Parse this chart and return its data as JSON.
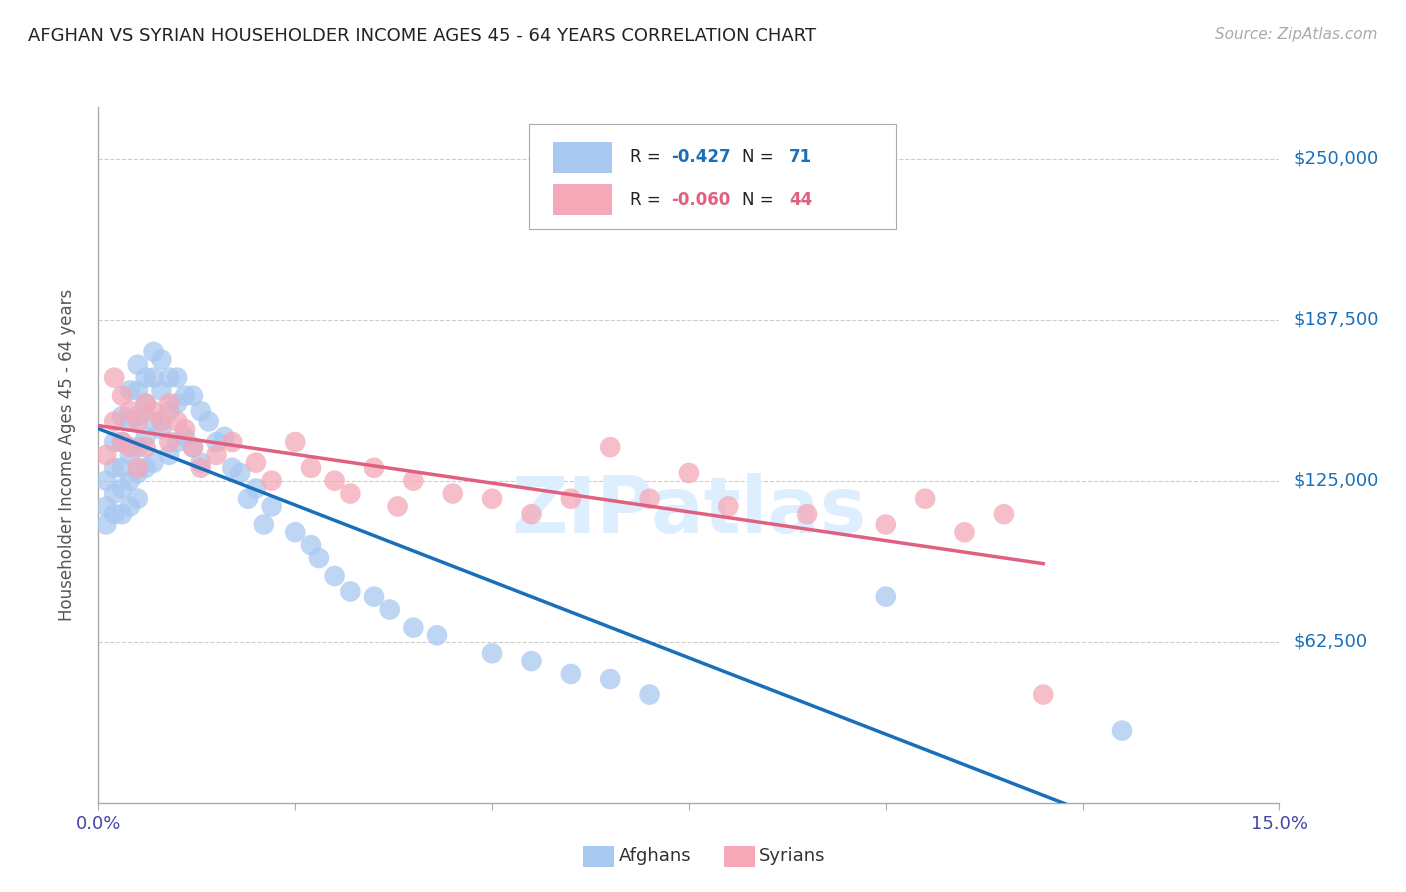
{
  "title": "AFGHAN VS SYRIAN HOUSEHOLDER INCOME AGES 45 - 64 YEARS CORRELATION CHART",
  "source": "Source: ZipAtlas.com",
  "ylabel": "Householder Income Ages 45 - 64 years",
  "ytick_labels": [
    "$62,500",
    "$125,000",
    "$187,500",
    "$250,000"
  ],
  "ytick_values": [
    62500,
    125000,
    187500,
    250000
  ],
  "ylim": [
    0,
    270000
  ],
  "xlim": [
    0.0,
    0.15
  ],
  "afghan_color": "#a8c8f0",
  "syrian_color": "#f4a8b8",
  "afghan_line_color": "#1a6fba",
  "syrian_line_color": "#e06080",
  "watermark_color": "#ddeeff",
  "background_color": "#ffffff",
  "afghan_x": [
    0.001,
    0.001,
    0.001,
    0.002,
    0.002,
    0.002,
    0.002,
    0.003,
    0.003,
    0.003,
    0.003,
    0.003,
    0.004,
    0.004,
    0.004,
    0.004,
    0.004,
    0.005,
    0.005,
    0.005,
    0.005,
    0.005,
    0.005,
    0.006,
    0.006,
    0.006,
    0.006,
    0.007,
    0.007,
    0.007,
    0.007,
    0.008,
    0.008,
    0.008,
    0.009,
    0.009,
    0.009,
    0.01,
    0.01,
    0.01,
    0.011,
    0.011,
    0.012,
    0.012,
    0.013,
    0.013,
    0.014,
    0.015,
    0.016,
    0.017,
    0.018,
    0.019,
    0.02,
    0.021,
    0.022,
    0.025,
    0.027,
    0.028,
    0.03,
    0.032,
    0.035,
    0.037,
    0.04,
    0.043,
    0.05,
    0.055,
    0.06,
    0.065,
    0.07,
    0.1,
    0.13
  ],
  "afghan_y": [
    125000,
    115000,
    108000,
    140000,
    130000,
    120000,
    112000,
    150000,
    140000,
    130000,
    122000,
    112000,
    160000,
    148000,
    135000,
    125000,
    115000,
    170000,
    160000,
    150000,
    138000,
    128000,
    118000,
    165000,
    155000,
    142000,
    130000,
    175000,
    165000,
    148000,
    132000,
    172000,
    160000,
    145000,
    165000,
    152000,
    135000,
    165000,
    155000,
    140000,
    158000,
    142000,
    158000,
    138000,
    152000,
    132000,
    148000,
    140000,
    142000,
    130000,
    128000,
    118000,
    122000,
    108000,
    115000,
    105000,
    100000,
    95000,
    88000,
    82000,
    80000,
    75000,
    68000,
    65000,
    58000,
    55000,
    50000,
    48000,
    42000,
    80000,
    28000
  ],
  "syrian_x": [
    0.001,
    0.002,
    0.002,
    0.003,
    0.003,
    0.004,
    0.004,
    0.005,
    0.005,
    0.006,
    0.006,
    0.007,
    0.008,
    0.009,
    0.009,
    0.01,
    0.011,
    0.012,
    0.013,
    0.015,
    0.017,
    0.02,
    0.022,
    0.025,
    0.027,
    0.03,
    0.032,
    0.035,
    0.038,
    0.04,
    0.045,
    0.05,
    0.055,
    0.06,
    0.065,
    0.07,
    0.075,
    0.08,
    0.09,
    0.1,
    0.105,
    0.11,
    0.115,
    0.12
  ],
  "syrian_y": [
    135000,
    165000,
    148000,
    158000,
    140000,
    152000,
    138000,
    148000,
    130000,
    155000,
    138000,
    152000,
    148000,
    155000,
    140000,
    148000,
    145000,
    138000,
    130000,
    135000,
    140000,
    132000,
    125000,
    140000,
    130000,
    125000,
    120000,
    130000,
    115000,
    125000,
    120000,
    118000,
    112000,
    118000,
    138000,
    118000,
    128000,
    115000,
    112000,
    108000,
    118000,
    105000,
    112000,
    42000
  ]
}
